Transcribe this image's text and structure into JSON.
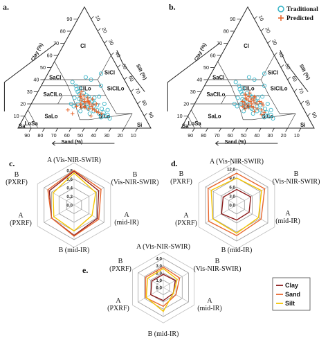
{
  "panel_labels": [
    "a.",
    "b.",
    "c.",
    "d.",
    "e."
  ],
  "legend_top": [
    {
      "label": "Traditional",
      "marker": "circle",
      "color": "#3bb6c9"
    },
    {
      "label": "Predicted",
      "marker": "plus",
      "color": "#e8672e"
    }
  ],
  "legend_bottom": [
    {
      "label": "Clay",
      "color": "#8b1a1a"
    },
    {
      "label": "Sand",
      "color": "#e8672e"
    },
    {
      "label": "Silt",
      "color": "#f5c400"
    }
  ],
  "chart_data": [
    {
      "type": "scatter",
      "subtype": "ternary",
      "panel": "a.",
      "axes": {
        "left": "Clay (%)",
        "right": "Silt (%)",
        "bottom": "Sand (%)"
      },
      "ticks": [
        "10",
        "20",
        "30",
        "40",
        "50",
        "60",
        "70",
        "80",
        "90"
      ],
      "classes": [
        "Cl",
        "SiCl",
        "SaCl",
        "ClLo",
        "SiClLo",
        "SaClLo",
        "Lo",
        "SiLo",
        "SaLo",
        "LoSa",
        "Sa",
        "Si"
      ],
      "series": [
        {
          "name": "Traditional",
          "points": [
            [
              20,
              35
            ],
            [
              18,
              40
            ],
            [
              16,
              45
            ],
            [
              22,
              38
            ],
            [
              25,
              30
            ],
            [
              14,
              50
            ],
            [
              12,
              55
            ],
            [
              20,
              42
            ],
            [
              24,
              34
            ],
            [
              28,
              32
            ],
            [
              30,
              30
            ],
            [
              18,
              48
            ],
            [
              15,
              52
            ],
            [
              10,
              60
            ],
            [
              22,
              45
            ],
            [
              26,
              40
            ],
            [
              32,
              28
            ],
            [
              35,
              26
            ],
            [
              12,
              48
            ],
            [
              8,
              65
            ],
            [
              20,
              30
            ],
            [
              23,
              36
            ],
            [
              17,
              44
            ],
            [
              13,
              58
            ],
            [
              19,
              50
            ],
            [
              27,
              38
            ],
            [
              21,
              47
            ],
            [
              16,
              55
            ],
            [
              24,
              42
            ],
            [
              29,
              35
            ],
            [
              11,
              62
            ],
            [
              9,
              58
            ],
            [
              14,
              40
            ],
            [
              18,
              33
            ],
            [
              33,
              30
            ],
            [
              38,
              22
            ],
            [
              25,
              45
            ],
            [
              15,
              60
            ],
            [
              20,
              55
            ],
            [
              26,
              48
            ],
            [
              40,
              35
            ],
            [
              45,
              40
            ],
            [
              35,
              45
            ],
            [
              42,
              30
            ]
          ]
        },
        {
          "name": "Predicted",
          "points": [
            [
              19,
              38
            ],
            [
              17,
              42
            ],
            [
              21,
              40
            ],
            [
              23,
              36
            ],
            [
              20,
              44
            ],
            [
              18,
              46
            ],
            [
              22,
              42
            ],
            [
              24,
              38
            ],
            [
              16,
              48
            ],
            [
              25,
              35
            ],
            [
              15,
              50
            ],
            [
              20,
              37
            ],
            [
              26,
              34
            ],
            [
              14,
              52
            ],
            [
              18,
              41
            ],
            [
              22,
              39
            ],
            [
              21,
              43
            ],
            [
              19,
              47
            ],
            [
              17,
              39
            ],
            [
              23,
              41
            ],
            [
              24,
              44
            ],
            [
              16,
              45
            ],
            [
              20,
              49
            ],
            [
              27,
              36
            ],
            [
              28,
              33
            ],
            [
              13,
              54
            ],
            [
              12,
              57
            ],
            [
              10,
              50
            ],
            [
              12,
              35
            ],
            [
              15,
              30
            ],
            [
              30,
              33
            ],
            [
              25,
              40
            ],
            [
              18,
              35
            ]
          ]
        }
      ]
    },
    {
      "type": "scatter",
      "subtype": "ternary",
      "panel": "b.",
      "axes": {
        "left": "Clay (%)",
        "right": "Silt (%)",
        "bottom": "Sand (%)"
      },
      "ticks": [
        "10",
        "20",
        "30",
        "40",
        "50",
        "60",
        "70",
        "80",
        "90"
      ],
      "classes": [
        "Cl",
        "SiCl",
        "SaCl",
        "ClLo",
        "SiClLo",
        "SaClLo",
        "Lo",
        "SiLo",
        "SaLo",
        "LoSa",
        "Sa",
        "Si"
      ],
      "series": [
        {
          "name": "Traditional",
          "points": [
            [
              20,
              35
            ],
            [
              18,
              40
            ],
            [
              16,
              45
            ],
            [
              22,
              38
            ],
            [
              25,
              30
            ],
            [
              14,
              50
            ],
            [
              12,
              55
            ],
            [
              20,
              42
            ],
            [
              24,
              34
            ],
            [
              28,
              32
            ],
            [
              30,
              30
            ],
            [
              18,
              48
            ],
            [
              15,
              52
            ],
            [
              10,
              60
            ],
            [
              22,
              45
            ],
            [
              26,
              40
            ],
            [
              32,
              28
            ],
            [
              35,
              26
            ],
            [
              12,
              48
            ],
            [
              8,
              65
            ],
            [
              20,
              30
            ],
            [
              23,
              36
            ],
            [
              17,
              44
            ],
            [
              13,
              58
            ],
            [
              19,
              50
            ],
            [
              27,
              38
            ],
            [
              21,
              47
            ],
            [
              16,
              55
            ],
            [
              24,
              42
            ],
            [
              29,
              35
            ],
            [
              11,
              62
            ],
            [
              9,
              58
            ],
            [
              14,
              40
            ],
            [
              18,
              33
            ],
            [
              33,
              30
            ],
            [
              38,
              22
            ],
            [
              25,
              45
            ],
            [
              15,
              60
            ],
            [
              20,
              55
            ],
            [
              26,
              48
            ],
            [
              40,
              35
            ],
            [
              45,
              40
            ],
            [
              35,
              45
            ],
            [
              42,
              30
            ]
          ]
        },
        {
          "name": "Predicted",
          "points": [
            [
              21,
              37
            ],
            [
              19,
              41
            ],
            [
              20,
              43
            ],
            [
              24,
              37
            ],
            [
              22,
              41
            ],
            [
              17,
              46
            ],
            [
              23,
              39
            ],
            [
              25,
              36
            ],
            [
              18,
              44
            ],
            [
              26,
              38
            ],
            [
              16,
              49
            ],
            [
              21,
              45
            ],
            [
              27,
              35
            ],
            [
              15,
              53
            ],
            [
              19,
              39
            ],
            [
              23,
              43
            ],
            [
              20,
              47
            ],
            [
              22,
              35
            ],
            [
              18,
              37
            ],
            [
              24,
              41
            ],
            [
              25,
              43
            ],
            [
              17,
              42
            ],
            [
              21,
              50
            ],
            [
              28,
              34
            ],
            [
              13,
              56
            ],
            [
              11,
              55
            ],
            [
              14,
              48
            ],
            [
              26,
              42
            ],
            [
              19,
              52
            ],
            [
              22,
              48
            ],
            [
              29,
              37
            ],
            [
              16,
              40
            ]
          ]
        }
      ]
    },
    {
      "type": "radar",
      "panel": "c.",
      "axes": [
        "A (Vis-NIR-SWIR)",
        "B\n(Vis-NIR-SWIR)",
        "A\n(mid-IR)",
        "B (mid-IR)",
        "A\n(PXRF)",
        "B\n(PXRF)"
      ],
      "ticks": [
        "0.0",
        "0.2",
        "0.4",
        "0.6",
        "0.8"
      ],
      "range": [
        0,
        0.8
      ],
      "series": [
        {
          "name": "Clay",
          "values": [
            0.78,
            0.66,
            0.62,
            0.7,
            0.6,
            0.66
          ]
        },
        {
          "name": "Sand",
          "values": [
            0.8,
            0.72,
            0.66,
            0.72,
            0.6,
            0.7
          ]
        },
        {
          "name": "Silt",
          "values": [
            0.74,
            0.58,
            0.48,
            0.6,
            0.54,
            0.56
          ]
        }
      ]
    },
    {
      "type": "radar",
      "panel": "d.",
      "axes": [
        "A (Vis-NIR-SWIR)",
        "B\n(Vis-NIR-SWIR)",
        "A\n(mid-IR)",
        "B (mid-IR)",
        "A\n(PXRF)",
        "B\n(PXRF)"
      ],
      "ticks": [
        "0.0",
        "3.0",
        "6.0",
        "9.0",
        "12.0"
      ],
      "range": [
        0,
        12
      ],
      "series": [
        {
          "name": "Clay",
          "values": [
            5.2,
            5.4,
            4.8,
            5.0,
            5.8,
            5.2
          ]
        },
        {
          "name": "Sand",
          "values": [
            10.6,
            10.8,
            9.4,
            10.2,
            10.8,
            11.0
          ]
        },
        {
          "name": "Silt",
          "values": [
            9.0,
            9.6,
            8.4,
            9.4,
            9.2,
            9.8
          ]
        }
      ]
    },
    {
      "type": "radar",
      "panel": "e.",
      "axes": [
        "A (Vis-NIR-SWIR)",
        "B\n(Vis-NIR-SWIR)",
        "A\n(mid-IR)",
        "B (mid-IR)",
        "A\n(PXRF)",
        "B\n(PXRF)"
      ],
      "ticks": [
        "0.0",
        "1.0",
        "2.0",
        "3.0",
        "4.0"
      ],
      "range": [
        0,
        4
      ],
      "series": [
        {
          "name": "Clay",
          "values": [
            1.8,
            1.9,
            1.6,
            1.8,
            2.0,
            1.8
          ]
        },
        {
          "name": "Sand",
          "values": [
            2.8,
            2.6,
            2.0,
            2.6,
            2.8,
            2.8
          ]
        },
        {
          "name": "Silt",
          "values": [
            2.6,
            2.2,
            1.6,
            3.3,
            2.7,
            2.5
          ]
        }
      ]
    }
  ]
}
